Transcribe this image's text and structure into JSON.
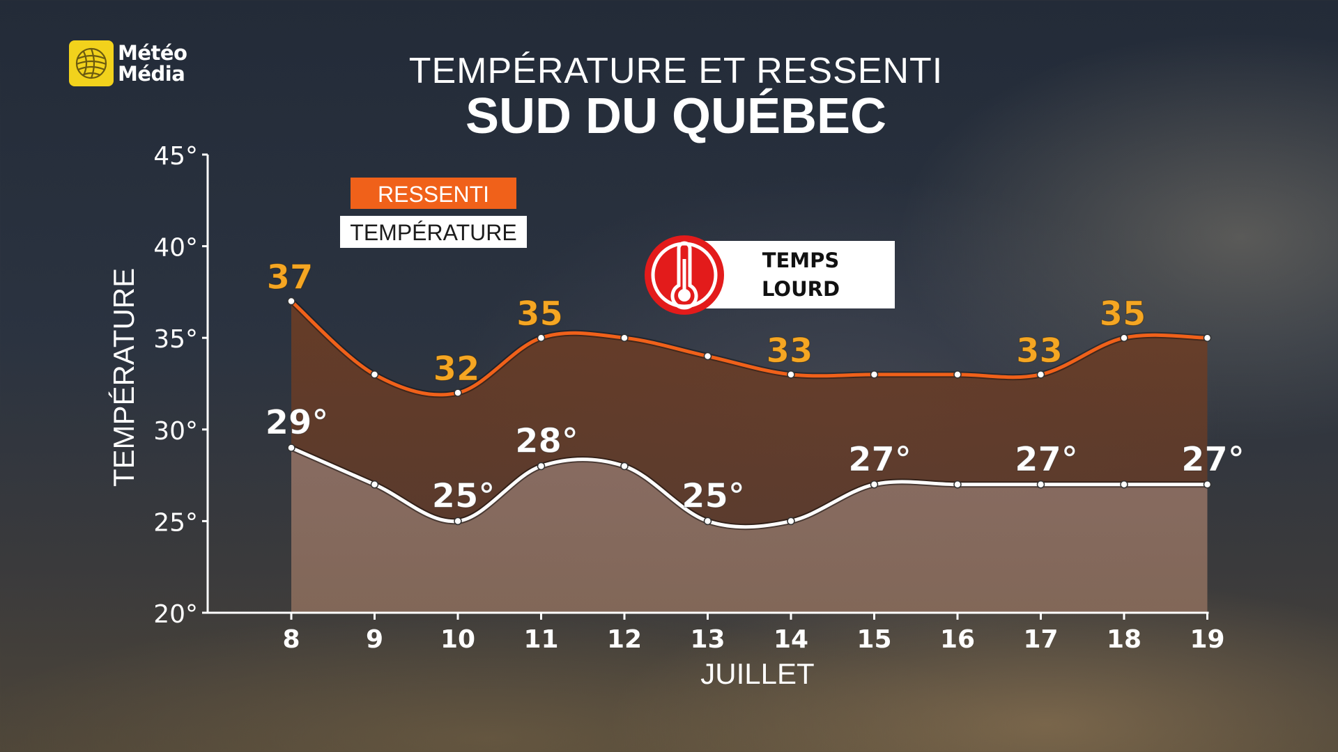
{
  "brand": {
    "logo_text_line1": "Météo",
    "logo_text_line2": "Média"
  },
  "header": {
    "title_top": "TEMPÉRATURE ET RESSENTI",
    "title_main": "SUD DU QUÉBEC"
  },
  "alert": {
    "icon": "thermometer-icon",
    "line1": "TEMPS",
    "line2": "LOURD"
  },
  "colors": {
    "ressenti": "#f0611a",
    "ressenti_label": "#f5a623",
    "temperature": "#ffffff",
    "alert_red": "#e31b1b"
  },
  "chart_data": {
    "type": "area",
    "x": [
      "8",
      "9",
      "10",
      "11",
      "12",
      "13",
      "14",
      "15",
      "16",
      "17",
      "18",
      "19"
    ],
    "xlabel": "JUILLET",
    "ylabel": "TEMPÉRATURE",
    "ylim": [
      20,
      45
    ],
    "yticks": [
      20,
      25,
      30,
      35,
      40,
      45
    ],
    "ytick_labels": [
      "20°",
      "25°",
      "30°",
      "35°",
      "40°",
      "45°"
    ],
    "legend_placement": "top-left",
    "series": [
      {
        "name": "RESSENTI",
        "values": [
          37,
          33,
          32,
          35,
          35,
          34,
          33,
          33,
          33,
          33,
          35,
          35
        ],
        "data_labels": [
          {
            "x": "8",
            "text": "37"
          },
          {
            "x": "10",
            "text": "32"
          },
          {
            "x": "11",
            "text": "35"
          },
          {
            "x": "14",
            "text": "33"
          },
          {
            "x": "17",
            "text": "33"
          },
          {
            "x": "18",
            "text": "35"
          }
        ]
      },
      {
        "name": "TEMPÉRATURE",
        "values": [
          29,
          27,
          25,
          28,
          28,
          25,
          25,
          27,
          27,
          27,
          27,
          27
        ],
        "data_labels": [
          {
            "x": "8",
            "text": "29°"
          },
          {
            "x": "10",
            "text": "25°"
          },
          {
            "x": "11",
            "text": "28°"
          },
          {
            "x": "13",
            "text": "25°"
          },
          {
            "x": "15",
            "text": "27°"
          },
          {
            "x": "17",
            "text": "27°"
          },
          {
            "x": "19",
            "text": "27°"
          }
        ]
      }
    ]
  }
}
